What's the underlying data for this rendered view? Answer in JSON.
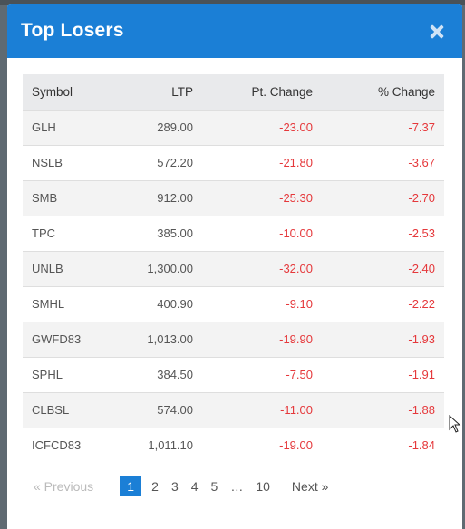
{
  "modal": {
    "title": "Top Losers"
  },
  "table": {
    "headers": {
      "symbol": "Symbol",
      "ltp": "LTP",
      "pt_change": "Pt. Change",
      "pct_change": "% Change"
    },
    "rows": [
      {
        "symbol": "GLH",
        "ltp": "289.00",
        "pt": "-23.00",
        "pct": "-7.37"
      },
      {
        "symbol": "NSLB",
        "ltp": "572.20",
        "pt": "-21.80",
        "pct": "-3.67"
      },
      {
        "symbol": "SMB",
        "ltp": "912.00",
        "pt": "-25.30",
        "pct": "-2.70"
      },
      {
        "symbol": "TPC",
        "ltp": "385.00",
        "pt": "-10.00",
        "pct": "-2.53"
      },
      {
        "symbol": "UNLB",
        "ltp": "1,300.00",
        "pt": "-32.00",
        "pct": "-2.40"
      },
      {
        "symbol": "SMHL",
        "ltp": "400.90",
        "pt": "-9.10",
        "pct": "-2.22"
      },
      {
        "symbol": "GWFD83",
        "ltp": "1,013.00",
        "pt": "-19.90",
        "pct": "-1.93"
      },
      {
        "symbol": "SPHL",
        "ltp": "384.50",
        "pt": "-7.50",
        "pct": "-1.91"
      },
      {
        "symbol": "CLBSL",
        "ltp": "574.00",
        "pt": "-11.00",
        "pct": "-1.88"
      },
      {
        "symbol": "ICFCD83",
        "ltp": "1,011.10",
        "pt": "-19.00",
        "pct": "-1.84"
      }
    ]
  },
  "pagination": {
    "previous": "«  Previous",
    "pages": [
      "1",
      "2",
      "3",
      "4",
      "5",
      "…",
      "10"
    ],
    "active_page": "1",
    "next": "Next  »"
  },
  "colors": {
    "header_blue": "#1b7fd6",
    "negative_red": "#e5383b"
  }
}
